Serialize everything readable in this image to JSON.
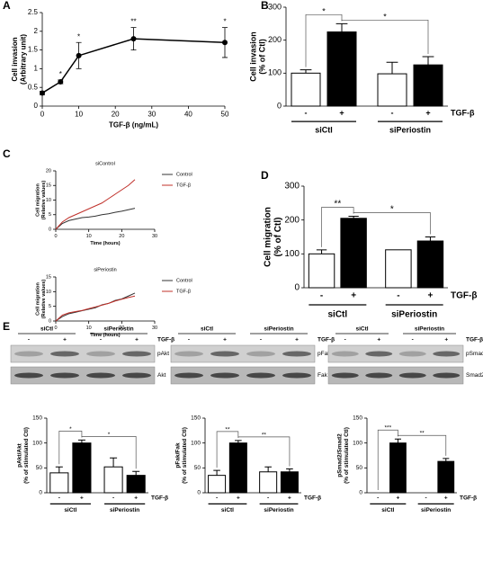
{
  "panel_labels": [
    "A",
    "B",
    "C",
    "D",
    "E"
  ],
  "blots": [
    {
      "groups": [
        "siCtl",
        "siPeriostin"
      ],
      "treatment": [
        "-",
        "+",
        "-",
        "+"
      ],
      "treatment_label": "TGF-β",
      "bands": [
        "pAkt",
        "Akt"
      ]
    },
    {
      "groups": [
        "siCtl",
        "siPeriostin"
      ],
      "treatment": [
        "-",
        "+",
        "-",
        "+"
      ],
      "treatment_label": "TGF-β",
      "bands": [
        "pFak",
        "Fak"
      ]
    },
    {
      "groups": [
        "siCtl",
        "siPeriostin"
      ],
      "treatment": [
        "-",
        "+",
        "-",
        "+"
      ],
      "treatment_label": "TGF-β",
      "bands": [
        "pSmad2",
        "Smad2"
      ]
    }
  ],
  "chart_data": [
    {
      "type": "line",
      "xlabel": "TGF-β (ng/mL)",
      "ylabel": [
        "Cell invasion",
        "(Arbitrary unit)"
      ],
      "x": [
        0,
        5,
        10,
        25,
        50
      ],
      "values": [
        0.35,
        0.65,
        1.35,
        1.8,
        1.7
      ],
      "errors": [
        0.05,
        0.05,
        0.35,
        0.3,
        0.4
      ],
      "annotations": [
        "",
        "*",
        "*",
        "**",
        "*"
      ],
      "color": "#000000",
      "xlim": [
        0,
        50
      ],
      "xticks": [
        0,
        10,
        20,
        30,
        40,
        50
      ],
      "ylim": [
        0,
        2.5
      ],
      "yticks": [
        0,
        0.5,
        1,
        1.5,
        2,
        2.5
      ]
    },
    {
      "type": "bar",
      "ylabel": [
        "Cell invasion",
        "(% of Ctl)"
      ],
      "categories": [
        "-",
        "+",
        "-",
        "+"
      ],
      "values": [
        100,
        225,
        98,
        125
      ],
      "errors": [
        10,
        25,
        35,
        25
      ],
      "colors": [
        "#ffffff",
        "#000000",
        "#ffffff",
        "#000000"
      ],
      "groups": [
        "siCtl",
        "siPeriostin"
      ],
      "treatment_label": "TGF-β",
      "annotations": [
        "*",
        "*"
      ],
      "ylim": [
        0,
        300
      ],
      "yticks": [
        0,
        100,
        200,
        300
      ]
    },
    {
      "type": "line",
      "title": "siControl",
      "xlabel": "Time (hours)",
      "ylabel": [
        "Cell migration",
        "(Relative values)"
      ],
      "x": [
        0,
        2,
        4,
        6,
        8,
        10,
        12,
        14,
        16,
        18,
        20,
        22,
        24
      ],
      "series": [
        {
          "name": "Control",
          "color": "#333333",
          "values": [
            0,
            2,
            3,
            3.5,
            4,
            4.2,
            4.5,
            5,
            5.3,
            5.8,
            6.2,
            6.7,
            7.2
          ]
        },
        {
          "name": "TGF-β",
          "color": "#c0302a",
          "values": [
            0,
            2.5,
            4,
            5,
            6,
            7,
            8,
            9,
            10.5,
            12,
            13.5,
            15,
            17
          ]
        }
      ],
      "xlim": [
        0,
        30
      ],
      "xticks": [
        0,
        10,
        20,
        30
      ],
      "ylim": [
        0,
        20
      ],
      "yticks": [
        0,
        5,
        10,
        15,
        20
      ]
    },
    {
      "type": "line",
      "title": "siPeriostin",
      "xlabel": "Time (hours)",
      "ylabel": [
        "Cell migration",
        "(Relative values)"
      ],
      "x": [
        0,
        2,
        4,
        6,
        8,
        10,
        12,
        14,
        16,
        18,
        20,
        22,
        24
      ],
      "series": [
        {
          "name": "Control",
          "color": "#333333",
          "values": [
            0,
            1.5,
            2.5,
            3,
            3.5,
            4,
            4.5,
            5.5,
            6,
            7,
            7.5,
            8.5,
            9.5
          ]
        },
        {
          "name": "TGF-β",
          "color": "#c0302a",
          "values": [
            0,
            2,
            2.8,
            3.2,
            3.6,
            4.2,
            4.8,
            5.4,
            6,
            6.8,
            7.4,
            8,
            8.5
          ]
        }
      ],
      "xlim": [
        0,
        30
      ],
      "xticks": [
        0,
        10,
        20,
        30
      ],
      "ylim": [
        0,
        15
      ],
      "yticks": [
        0,
        5,
        10,
        15
      ]
    },
    {
      "type": "bar",
      "ylabel": [
        "Cell migration",
        "(% of Ctl)"
      ],
      "categories": [
        "-",
        "+",
        "-",
        "+"
      ],
      "values": [
        100,
        205,
        112,
        138
      ],
      "errors": [
        12,
        6,
        0,
        12
      ],
      "colors": [
        "#ffffff",
        "#000000",
        "#ffffff",
        "#000000"
      ],
      "groups": [
        "siCtl",
        "siPeriostin"
      ],
      "treatment_label": "TGF-β",
      "annotations": [
        "**",
        "*"
      ],
      "ylim": [
        0,
        300
      ],
      "yticks": [
        0,
        100,
        200,
        300
      ]
    },
    {
      "type": "bar",
      "ylabel": [
        "pAkt/Akt",
        "(% of stimulated Ctl)"
      ],
      "categories": [
        "-",
        "+",
        "-",
        "+"
      ],
      "values": [
        40,
        100,
        52,
        35
      ],
      "errors": [
        12,
        6,
        18,
        8
      ],
      "colors": [
        "#ffffff",
        "#000000",
        "#ffffff",
        "#000000"
      ],
      "groups": [
        "siCtl",
        "siPeriostin"
      ],
      "treatment_label": "TGF-β",
      "annotations": [
        "*",
        "*"
      ],
      "ylim": [
        0,
        150
      ],
      "yticks": [
        0,
        50,
        100,
        150
      ]
    },
    {
      "type": "bar",
      "ylabel": [
        "pFak/Fak",
        "(% of stimulated Ctl)"
      ],
      "categories": [
        "-",
        "+",
        "-",
        "+"
      ],
      "values": [
        35,
        100,
        42,
        42
      ],
      "errors": [
        10,
        5,
        10,
        6
      ],
      "colors": [
        "#ffffff",
        "#000000",
        "#ffffff",
        "#000000"
      ],
      "groups": [
        "siCtl",
        "siPeriostin"
      ],
      "treatment_label": "TGF-β",
      "annotations": [
        "**",
        "**"
      ],
      "ylim": [
        0,
        150
      ],
      "yticks": [
        0,
        50,
        100,
        150
      ]
    },
    {
      "type": "bar",
      "ylabel": [
        "pSmad2/Smad2",
        "(% of stimulated Ctl)"
      ],
      "categories": [
        "-",
        "+",
        "-",
        "+"
      ],
      "values": [
        0,
        100,
        0,
        63
      ],
      "errors": [
        0,
        8,
        0,
        6
      ],
      "colors": [
        "#ffffff",
        "#000000",
        "#ffffff",
        "#000000"
      ],
      "groups": [
        "siCtl",
        "siPeriostin"
      ],
      "treatment_label": "TGF-β",
      "annotations": [
        "***",
        "**"
      ],
      "ylim": [
        0,
        150
      ],
      "yticks": [
        0,
        50,
        100,
        150
      ]
    }
  ]
}
